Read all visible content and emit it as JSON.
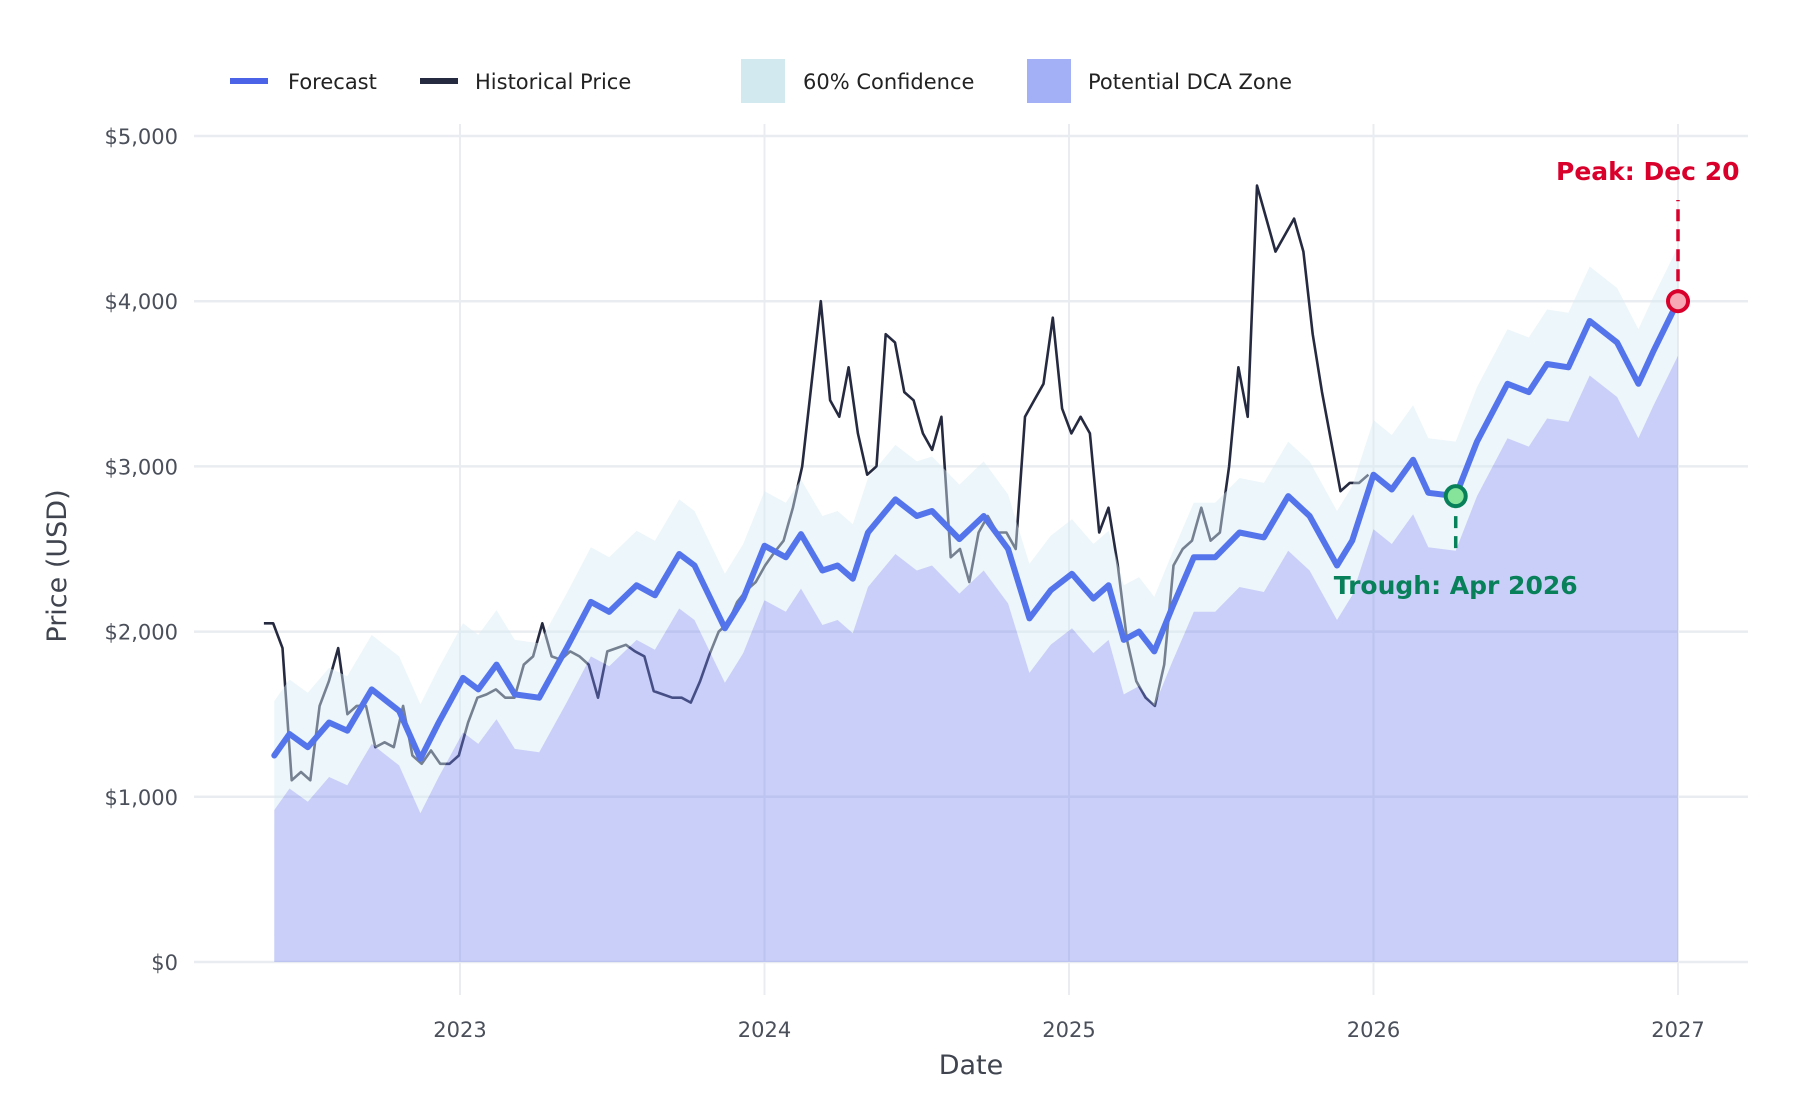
{
  "chart_data": {
    "type": "line",
    "title": "",
    "xlabel": "Date",
    "ylabel": "Price (USD)",
    "xlim": [
      2022.1,
      2027.23
    ],
    "ylim": [
      -200,
      5300
    ],
    "x_ticks": [
      2023,
      2024,
      2025,
      2026,
      2027
    ],
    "x_tick_labels": [
      "2023",
      "2024",
      "2025",
      "2026",
      "2027"
    ],
    "y_ticks": [
      0,
      1000,
      2000,
      3000,
      4000,
      5000
    ],
    "y_tick_labels": [
      "$0",
      "$1,000",
      "$2,000",
      "$3,000",
      "$4,000",
      "$5,000"
    ],
    "grid": true,
    "legend": {
      "placement": "top-left",
      "items": [
        {
          "label": "Forecast",
          "kind": "line",
          "color": "#4b63e6"
        },
        {
          "label": "Historical Price",
          "kind": "line",
          "color": "#262a40"
        },
        {
          "label": "60% Confidence",
          "kind": "box",
          "color": "#d3e9f0"
        },
        {
          "label": "Potential DCA Zone",
          "kind": "box",
          "color": "#a4b0f5"
        }
      ]
    },
    "colors": {
      "forecast": "#5474ec",
      "historical": "#262a40",
      "confidence": "#d6ecf3",
      "dca": "#c7cef8",
      "peak": "#d9002c",
      "peak_fill": "#f7a8b4",
      "trough": "#08805a",
      "trough_fill": "#86e39a"
    },
    "confidence_halfwidth_usd": 330,
    "historical": {
      "start_year": 2022.356,
      "step_years": 0.03048,
      "values": [
        2050,
        2050,
        1900,
        1100,
        1150,
        1100,
        1550,
        1700,
        1900,
        1500,
        1550,
        1550,
        1300,
        1330,
        1300,
        1550,
        1250,
        1200,
        1280,
        1200,
        1200,
        1250,
        1450,
        1600,
        1620,
        1650,
        1600,
        1600,
        1800,
        1850,
        2050,
        1850,
        1830,
        1880,
        1850,
        1800,
        1600,
        1880,
        1900,
        1920,
        1880,
        1850,
        1640,
        1620,
        1600,
        1600,
        1570,
        1700,
        1860,
        2000,
        2050,
        2180,
        2250,
        2300,
        2400,
        2480,
        2550,
        2750,
        3000,
        3500,
        4000,
        3400,
        3300,
        3600,
        3200,
        2950,
        3000,
        3800,
        3750,
        3450,
        3400,
        3200,
        3100,
        3300,
        2450,
        2500,
        2300,
        2600,
        2700,
        2600,
        2600,
        2500,
        3300,
        3400,
        3500,
        3900,
        3350,
        3200,
        3300,
        3200,
        2600,
        2750,
        2400,
        1950,
        1700,
        1600,
        1550,
        1800,
        2400,
        2500,
        2550,
        2750,
        2550,
        2600,
        3000,
        3600,
        3300,
        4700,
        4500,
        4300,
        4400,
        4500,
        4300,
        3800,
        3450,
        3150,
        2850,
        2900,
        2900,
        2950
      ]
    },
    "forecast": [
      [
        2022.39,
        1250
      ],
      [
        2022.44,
        1380
      ],
      [
        2022.5,
        1300
      ],
      [
        2022.57,
        1450
      ],
      [
        2022.63,
        1400
      ],
      [
        2022.71,
        1650
      ],
      [
        2022.8,
        1520
      ],
      [
        2022.87,
        1230
      ],
      [
        2022.93,
        1450
      ],
      [
        2023.01,
        1720
      ],
      [
        2023.06,
        1650
      ],
      [
        2023.12,
        1800
      ],
      [
        2023.18,
        1620
      ],
      [
        2023.26,
        1600
      ],
      [
        2023.35,
        1900
      ],
      [
        2023.43,
        2180
      ],
      [
        2023.49,
        2120
      ],
      [
        2023.58,
        2280
      ],
      [
        2023.64,
        2220
      ],
      [
        2023.72,
        2470
      ],
      [
        2023.77,
        2400
      ],
      [
        2023.87,
        2020
      ],
      [
        2023.93,
        2200
      ],
      [
        2024.0,
        2520
      ],
      [
        2024.07,
        2450
      ],
      [
        2024.12,
        2590
      ],
      [
        2024.19,
        2370
      ],
      [
        2024.24,
        2400
      ],
      [
        2024.29,
        2320
      ],
      [
        2024.34,
        2600
      ],
      [
        2024.43,
        2800
      ],
      [
        2024.5,
        2700
      ],
      [
        2024.55,
        2730
      ],
      [
        2024.64,
        2560
      ],
      [
        2024.72,
        2700
      ],
      [
        2024.8,
        2500
      ],
      [
        2024.87,
        2080
      ],
      [
        2024.94,
        2250
      ],
      [
        2025.01,
        2350
      ],
      [
        2025.08,
        2200
      ],
      [
        2025.13,
        2280
      ],
      [
        2025.18,
        1950
      ],
      [
        2025.23,
        2000
      ],
      [
        2025.28,
        1880
      ],
      [
        2025.34,
        2150
      ],
      [
        2025.41,
        2450
      ],
      [
        2025.48,
        2450
      ],
      [
        2025.56,
        2600
      ],
      [
        2025.64,
        2570
      ],
      [
        2025.72,
        2820
      ],
      [
        2025.79,
        2700
      ],
      [
        2025.88,
        2400
      ],
      [
        2025.93,
        2550
      ],
      [
        2026.0,
        2950
      ],
      [
        2026.06,
        2860
      ],
      [
        2026.13,
        3040
      ],
      [
        2026.18,
        2840
      ],
      [
        2026.27,
        2820
      ],
      [
        2026.34,
        3150
      ],
      [
        2026.44,
        3500
      ],
      [
        2026.51,
        3450
      ],
      [
        2026.57,
        3620
      ],
      [
        2026.64,
        3600
      ],
      [
        2026.71,
        3880
      ],
      [
        2026.8,
        3750
      ],
      [
        2026.87,
        3500
      ],
      [
        2026.92,
        3700
      ],
      [
        2027.0,
        4000
      ]
    ],
    "annotations": {
      "peak": {
        "label": "Peak: Dec 20",
        "x": 2027.0,
        "y": 4000
      },
      "trough": {
        "label": "Trough: Apr 2026",
        "x": 2026.27,
        "y": 2820
      }
    }
  }
}
